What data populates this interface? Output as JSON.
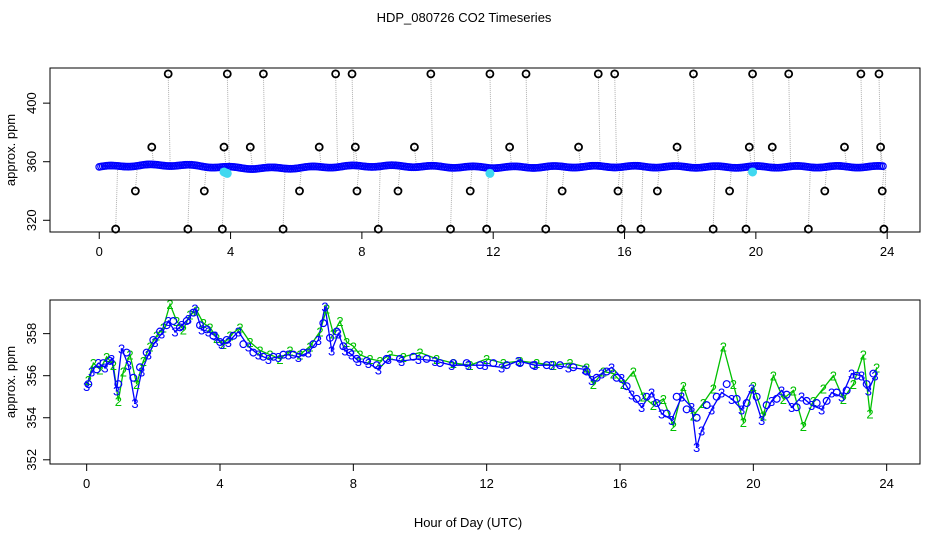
{
  "figure": {
    "title": "HDP_080726  CO2 Timeseries",
    "xlabel": "Hour of Day (UTC)"
  },
  "colors": {
    "blue": "#0000ff",
    "green": "#00c000",
    "cyan": "#40d8f0",
    "black": "#000000",
    "gray": "#b0b0b0"
  },
  "chart_data": [
    {
      "type": "scatter",
      "panel": "top",
      "ylabel": "approx. ppm",
      "xlim": [
        -1.5,
        25
      ],
      "ylim": [
        312,
        424
      ],
      "xticks": [
        0,
        4,
        8,
        12,
        16,
        20,
        24
      ],
      "yticks": [
        320,
        360,
        400
      ],
      "series": [
        {
          "marker": "circle",
          "color": "#000000",
          "x": [
            0.5,
            1.1,
            1.6,
            2.1,
            2.7,
            3.2,
            3.75,
            3.8,
            3.9,
            4.6,
            5.0,
            5.6,
            6.1,
            6.7,
            7.2,
            7.7,
            7.8,
            7.85,
            8.5,
            9.1,
            9.6,
            10.1,
            10.7,
            11.3,
            11.8,
            11.9,
            12.5,
            13.0,
            13.6,
            14.1,
            14.6,
            15.2,
            15.7,
            15.8,
            15.9,
            16.5,
            17.0,
            17.6,
            18.1,
            18.7,
            19.2,
            19.7,
            19.8,
            19.9,
            20.5,
            21.0,
            21.6,
            22.1,
            22.7,
            23.2,
            23.75,
            23.8,
            23.85,
            23.9
          ],
          "y": [
            314,
            340,
            370,
            420,
            314,
            340,
            314,
            370,
            420,
            370,
            420,
            314,
            340,
            370,
            420,
            420,
            370,
            340,
            314,
            340,
            370,
            420,
            314,
            340,
            314,
            420,
            370,
            420,
            314,
            340,
            370,
            420,
            420,
            340,
            314,
            314,
            340,
            370,
            420,
            314,
            340,
            314,
            370,
            420,
            370,
            420,
            314,
            340,
            370,
            420,
            420,
            370,
            340,
            314
          ]
        },
        {
          "marker": "circle",
          "color": "#40d8f0",
          "x": [
            3.8,
            3.9,
            11.9,
            19.9
          ],
          "y": [
            353,
            352,
            352,
            353
          ]
        }
      ]
    },
    {
      "type": "line",
      "panel": "bottom",
      "ylabel": "approx. ppm",
      "xlim": [
        -1.1,
        25
      ],
      "ylim": [
        351.8,
        359.6
      ],
      "xticks": [
        0,
        4,
        8,
        12,
        16,
        20,
        24
      ],
      "yticks": [
        352,
        354,
        356,
        358
      ],
      "series": [
        {
          "name": "2",
          "marker": "2",
          "color": "#00c000",
          "x": [
            0.05,
            0.2,
            0.4,
            0.6,
            0.8,
            0.95,
            1.1,
            1.3,
            1.5,
            1.7,
            1.9,
            2.1,
            2.3,
            2.5,
            2.7,
            2.9,
            3.1,
            3.3,
            3.5,
            3.7,
            3.9,
            4.1,
            4.3,
            4.6,
            4.9,
            5.2,
            5.5,
            5.8,
            6.1,
            6.4,
            6.7,
            7.0,
            7.2,
            7.4,
            7.6,
            7.8,
            8.0,
            8.2,
            8.5,
            8.8,
            9.1,
            9.5,
            10.0,
            10.5,
            11.0,
            11.5,
            12.0,
            12.5,
            13.0,
            13.5,
            14.0,
            14.5,
            15.0,
            15.2,
            15.5,
            15.8,
            16.1,
            16.4,
            16.7,
            17.0,
            17.3,
            17.6,
            17.9,
            18.2,
            18.5,
            18.8,
            19.1,
            19.4,
            19.7,
            20.0,
            20.3,
            20.6,
            20.9,
            21.2,
            21.5,
            21.8,
            22.1,
            22.4,
            22.7,
            23.0,
            23.3,
            23.5,
            23.7
          ],
          "y": [
            355.8,
            356.6,
            356.3,
            356.9,
            356.5,
            354.8,
            356.2,
            357.0,
            355.6,
            356.7,
            357.4,
            357.9,
            358.3,
            359.4,
            358.6,
            358.2,
            358.9,
            359.1,
            358.5,
            358.3,
            357.8,
            357.5,
            357.9,
            358.3,
            357.6,
            357.2,
            357.0,
            356.8,
            357.2,
            357.0,
            357.4,
            358.1,
            359.2,
            358.0,
            358.6,
            357.6,
            357.4,
            357.0,
            356.8,
            356.7,
            357.0,
            356.9,
            357.1,
            356.8,
            356.6,
            356.5,
            356.8,
            356.6,
            356.7,
            356.6,
            356.5,
            356.6,
            356.4,
            355.6,
            356.2,
            356.1,
            355.6,
            356.2,
            355.0,
            354.6,
            354.9,
            353.6,
            355.5,
            354.1,
            354.7,
            355.4,
            357.4,
            355.6,
            353.8,
            355.5,
            354.1,
            356.0,
            354.9,
            355.3,
            353.6,
            354.8,
            355.4,
            356.0,
            354.9,
            355.6,
            357.0,
            354.2,
            356.4
          ]
        },
        {
          "name": "3",
          "marker": "3",
          "color": "#0000ff",
          "x": [
            0.0,
            0.15,
            0.35,
            0.55,
            0.75,
            0.9,
            1.05,
            1.25,
            1.45,
            1.65,
            1.85,
            2.05,
            2.25,
            2.45,
            2.65,
            2.85,
            3.05,
            3.25,
            3.45,
            3.65,
            3.85,
            4.05,
            4.25,
            4.55,
            4.85,
            5.15,
            5.45,
            5.75,
            6.05,
            6.35,
            6.65,
            6.95,
            7.15,
            7.35,
            7.55,
            7.75,
            7.95,
            8.15,
            8.45,
            8.75,
            9.05,
            9.45,
            9.95,
            10.45,
            10.95,
            11.45,
            11.95,
            12.45,
            12.95,
            13.45,
            13.95,
            14.45,
            14.95,
            15.15,
            15.45,
            15.75,
            16.05,
            16.35,
            16.65,
            16.95,
            17.25,
            17.55,
            17.85,
            18.15,
            18.3,
            18.45,
            18.75,
            19.05,
            19.35,
            19.65,
            19.95,
            20.25,
            20.55,
            20.85,
            21.15,
            21.45,
            21.75,
            22.05,
            22.35,
            22.65,
            22.95,
            23.25,
            23.45,
            23.65
          ],
          "y": [
            355.5,
            356.2,
            356.6,
            356.4,
            356.8,
            355.3,
            357.3,
            356.5,
            354.7,
            356.2,
            357.0,
            357.6,
            358.0,
            358.6,
            358.1,
            358.4,
            358.7,
            359.2,
            358.2,
            358.1,
            357.9,
            357.5,
            357.6,
            358.1,
            357.4,
            357.0,
            356.8,
            356.9,
            357.0,
            356.9,
            357.1,
            357.7,
            359.3,
            357.2,
            358.0,
            357.2,
            357.0,
            356.7,
            356.6,
            356.3,
            356.8,
            356.7,
            356.8,
            356.7,
            356.5,
            356.5,
            356.5,
            356.4,
            356.7,
            356.5,
            356.5,
            356.4,
            356.3,
            355.8,
            356.1,
            356.4,
            355.9,
            355.1,
            354.5,
            355.2,
            354.2,
            353.9,
            355.0,
            354.5,
            352.6,
            353.4,
            354.4,
            355.2,
            354.9,
            354.4,
            355.4,
            353.9,
            354.8,
            355.3,
            354.5,
            355.0,
            354.6,
            354.4,
            355.2,
            355.0,
            356.1,
            356.0,
            355.3,
            356.0
          ]
        },
        {
          "name": "o",
          "marker": "circle",
          "color": "#0000ff",
          "x": [
            0.05,
            0.3,
            0.5,
            0.7,
            0.95,
            1.2,
            1.4,
            1.6,
            1.8,
            2.0,
            2.2,
            2.4,
            2.6,
            2.8,
            3.0,
            3.2,
            3.4,
            3.6,
            3.8,
            4.0,
            4.2,
            4.4,
            4.7,
            5.0,
            5.3,
            5.6,
            5.9,
            6.2,
            6.5,
            6.8,
            7.1,
            7.3,
            7.5,
            7.7,
            7.9,
            8.1,
            8.4,
            8.7,
            9.0,
            9.4,
            9.8,
            10.2,
            10.6,
            11.0,
            11.4,
            11.8,
            12.2,
            12.6,
            13.0,
            13.4,
            13.8,
            14.2,
            14.6,
            15.0,
            15.3,
            15.6,
            15.9,
            16.2,
            16.5,
            16.8,
            17.1,
            17.4,
            17.7,
            18.0,
            18.3,
            18.6,
            18.9,
            19.2,
            19.5,
            19.8,
            20.1,
            20.4,
            20.7,
            21.0,
            21.3,
            21.6,
            21.9,
            22.2,
            22.5,
            22.8,
            23.1,
            23.4,
            23.6
          ],
          "y": [
            355.6,
            356.3,
            356.6,
            356.7,
            355.6,
            357.1,
            355.9,
            356.4,
            357.1,
            357.7,
            358.1,
            358.4,
            358.6,
            358.3,
            358.6,
            359.0,
            358.4,
            358.2,
            357.9,
            357.6,
            357.7,
            357.9,
            357.5,
            357.1,
            356.9,
            356.9,
            357.0,
            357.0,
            357.1,
            357.5,
            358.5,
            357.8,
            358.1,
            357.4,
            357.1,
            356.8,
            356.7,
            356.5,
            356.8,
            356.8,
            356.9,
            356.8,
            356.6,
            356.6,
            356.6,
            356.5,
            356.6,
            356.5,
            356.6,
            356.5,
            356.5,
            356.5,
            356.4,
            356.2,
            355.9,
            356.2,
            355.9,
            355.5,
            354.9,
            355.0,
            354.7,
            354.2,
            355.0,
            354.4,
            354.0,
            354.6,
            355.0,
            355.6,
            354.9,
            354.7,
            355.0,
            354.6,
            354.9,
            355.1,
            354.5,
            354.8,
            354.7,
            354.8,
            355.2,
            355.3,
            356.0,
            355.6,
            356.1
          ]
        }
      ]
    }
  ]
}
